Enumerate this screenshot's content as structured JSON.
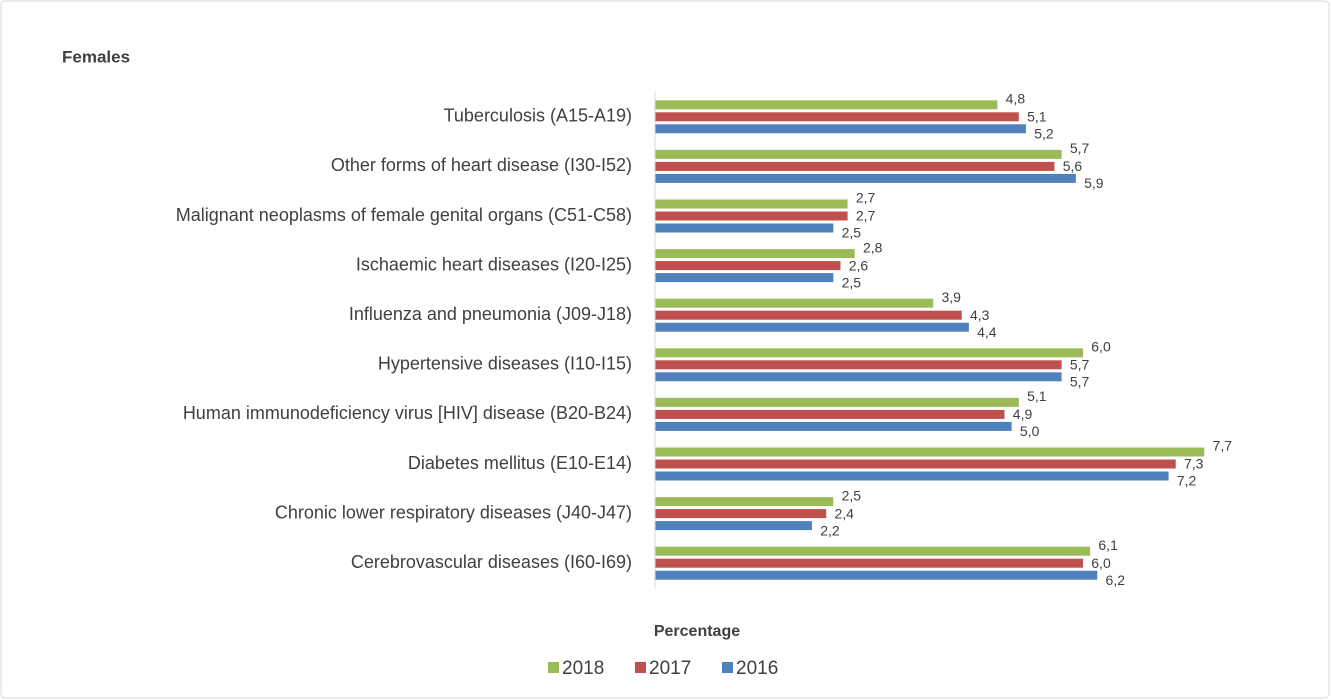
{
  "chart_data": {
    "type": "bar",
    "orientation": "horizontal",
    "title": "Females",
    "x_label": "Percentage",
    "categories": [
      "Tuberculosis (A15-A19)",
      "Other forms of heart disease (I30-I52)",
      "Malignant neoplasms of female genital organs (C51-C58)",
      "Ischaemic heart diseases (I20-I25)",
      "Influenza and pneumonia (J09-J18)",
      "Hypertensive diseases (I10-I15)",
      "Human immunodeficiency virus [HIV] disease (B20-B24)",
      "Diabetes mellitus (E10-E14)",
      "Chronic lower respiratory diseases (J40-J47)",
      "Cerebrovascular diseases (I60-I69)"
    ],
    "series": [
      {
        "name": "2018",
        "color": "#9bbb59",
        "values": [
          4.8,
          5.7,
          2.7,
          2.8,
          3.9,
          6.0,
          5.1,
          7.7,
          2.5,
          6.1
        ],
        "value_labels": [
          "4,8",
          "5,7",
          "2,7",
          "2,8",
          "3,9",
          "6,0",
          "5,1",
          "7,7",
          "2,5",
          "6,1"
        ]
      },
      {
        "name": "2017",
        "color": "#c0504d",
        "values": [
          5.1,
          5.6,
          2.7,
          2.6,
          4.3,
          5.7,
          4.9,
          7.3,
          2.4,
          6.0
        ],
        "value_labels": [
          "5,1",
          "5,6",
          "2,7",
          "2,6",
          "4,3",
          "5,7",
          "4,9",
          "7,3",
          "2,4",
          "6,0"
        ]
      },
      {
        "name": "2016",
        "color": "#4f81bd",
        "values": [
          5.2,
          5.9,
          2.5,
          2.5,
          4.4,
          5.7,
          5.0,
          7.2,
          2.2,
          6.2
        ],
        "value_labels": [
          "5,2",
          "5,9",
          "2,5",
          "2,5",
          "4,4",
          "5,7",
          "5,0",
          "7,2",
          "2,2",
          "6,2"
        ]
      }
    ],
    "xlim": [
      0,
      9
    ],
    "legend": "bottom"
  }
}
